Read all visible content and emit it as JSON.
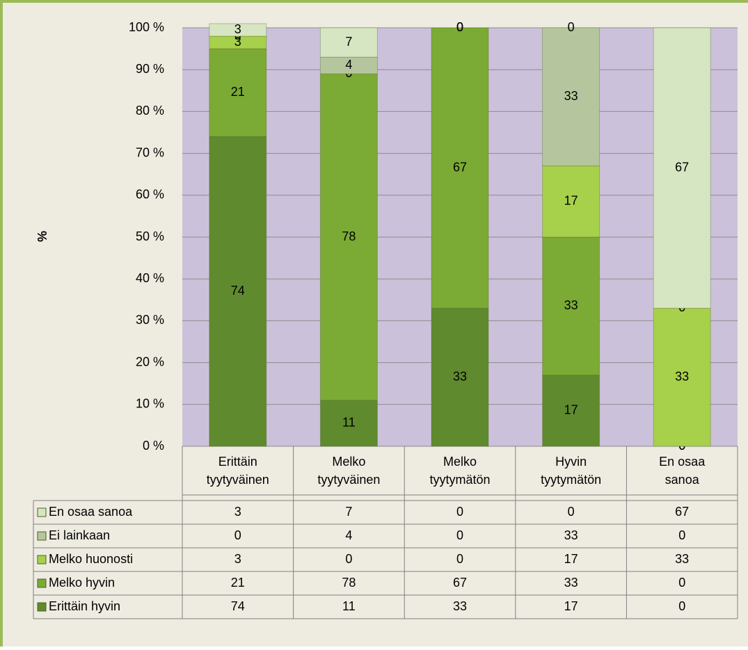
{
  "chart_data": {
    "type": "bar",
    "stacked": true,
    "ylabel": "%",
    "categories": [
      "Erittäin\ntyytyväinen",
      "Melko\ntyytyväinen",
      "Melko\ntyytymätön",
      "Hyvin\ntyytymätön",
      "En osaa\nsanoa"
    ],
    "series": [
      {
        "name": "Erittäin hyvin",
        "color": "#5f8a2d",
        "values": [
          74,
          11,
          33,
          17,
          0
        ]
      },
      {
        "name": "Melko hyvin",
        "color": "#7baa35",
        "values": [
          21,
          78,
          67,
          33,
          0
        ]
      },
      {
        "name": "Melko huonosti",
        "color": "#a7d04b",
        "values": [
          3,
          0,
          0,
          17,
          33
        ]
      },
      {
        "name": "Ei lainkaan",
        "color": "#b5c69e",
        "values": [
          0,
          4,
          0,
          33,
          0
        ]
      },
      {
        "name": "En osaa sanoa",
        "color": "#d6e6c2",
        "values": [
          3,
          7,
          0,
          0,
          67
        ]
      }
    ],
    "ylim": [
      0,
      100
    ],
    "yticks": [
      {
        "value": 0,
        "label": "0 %"
      },
      {
        "value": 10,
        "label": "10 %"
      },
      {
        "value": 20,
        "label": "20 %"
      },
      {
        "value": 30,
        "label": "30 %"
      },
      {
        "value": 40,
        "label": "40 %"
      },
      {
        "value": 50,
        "label": "50 %"
      },
      {
        "value": 60,
        "label": "60 %"
      },
      {
        "value": 70,
        "label": "70 %"
      },
      {
        "value": 80,
        "label": "80 %"
      },
      {
        "value": 90,
        "label": "90 %"
      },
      {
        "value": 100,
        "label": "100 %"
      }
    ],
    "grid": true
  }
}
